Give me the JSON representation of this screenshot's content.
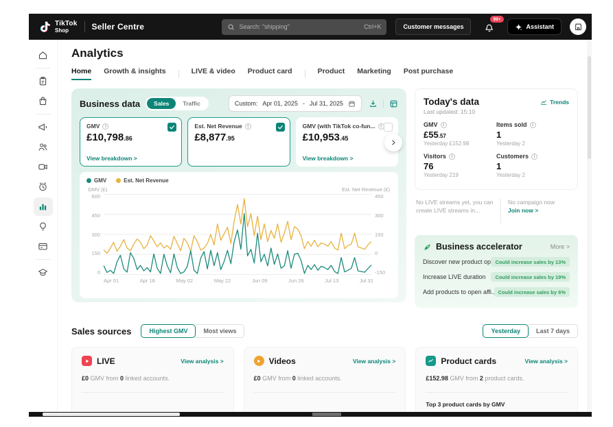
{
  "header": {
    "logo": {
      "line1": "TikTok",
      "line2": "Shop"
    },
    "product_name": "Seller Centre",
    "search": {
      "placeholder": "Search: \"shipping\"",
      "shortcut": "Ctrl+K"
    },
    "customer_messages_label": "Customer messages",
    "notification_badge": "99+",
    "assistant_label": "Assistant"
  },
  "sidebar": {
    "active": "analytics",
    "icons": [
      "home",
      "orders",
      "products",
      "marketing",
      "affiliate",
      "live",
      "ads",
      "analytics",
      "growth",
      "finance",
      "academy"
    ]
  },
  "page": {
    "title": "Analytics",
    "tabs": [
      {
        "label": "Home",
        "active": true
      },
      {
        "label": "Growth & insights",
        "active": false
      },
      {
        "label": "LIVE & video",
        "active": false
      },
      {
        "label": "Product card",
        "active": false
      },
      {
        "label": "Product",
        "active": false
      },
      {
        "label": "Marketing",
        "active": false
      },
      {
        "label": "Post purchase",
        "active": false
      }
    ]
  },
  "business_data": {
    "title": "Business data",
    "toggle": {
      "sales": "Sales",
      "traffic": "Traffic"
    },
    "date_range": {
      "label": "Custom:",
      "start": "Apr 01, 2025",
      "separator": "-",
      "end": "Jul 31, 2025"
    },
    "metric_cards": [
      {
        "label": "GMV",
        "value": "£10,798",
        "decimals": ".86",
        "checked": true,
        "link": "View breakdown >"
      },
      {
        "label": "Est. Net Revenue",
        "value": "£8,877",
        "decimals": ".95",
        "checked": true,
        "link": ""
      },
      {
        "label": "GMV (with TikTok co-fun...",
        "value": "£10,953",
        "decimals": ".45",
        "checked": false,
        "link": "View breakdown >"
      }
    ]
  },
  "chart_data": {
    "type": "line",
    "grid": true,
    "legend_position": "top-left",
    "x_ticks": [
      "Apr 01",
      "Apr 18",
      "May 02",
      "May 22",
      "Jun 09",
      "Jun 26",
      "Jul 13",
      "Jul 31"
    ],
    "left_axis": {
      "label": "GMV (£)",
      "ticks": [
        "600",
        "450",
        "300",
        "150",
        "0"
      ],
      "range": [
        0,
        600
      ]
    },
    "right_axis": {
      "label": "Est. Net Revenue (£)",
      "ticks": [
        "450",
        "300",
        "150",
        "0",
        "-150"
      ],
      "range": [
        -150,
        450
      ]
    },
    "series": [
      {
        "name": "GMV",
        "axis": "left",
        "color": "#1b8a7d",
        "values": [
          60,
          8,
          25,
          0,
          90,
          140,
          35,
          10,
          160,
          115,
          30,
          62,
          20,
          45,
          12,
          150,
          40,
          0,
          148,
          60,
          5,
          150,
          45,
          0,
          12,
          55,
          175,
          25,
          0,
          118,
          168,
          35,
          178,
          60,
          160,
          30,
          92,
          178,
          75,
          245,
          335,
          185,
          460,
          135,
          185,
          80,
          310,
          90,
          148,
          58,
          195,
          70,
          150,
          40,
          60,
          175,
          40,
          148,
          155,
          100,
          0,
          62,
          30,
          68,
          25,
          55,
          45,
          30,
          62,
          15,
          0,
          122,
          12,
          25,
          40,
          122,
          20,
          15,
          10,
          38,
          65
        ]
      },
      {
        "name": "Est. Net Revenue",
        "axis": "right",
        "color": "#e7b23c",
        "values": [
          30,
          5,
          45,
          90,
          20,
          60,
          110,
          45,
          25,
          75,
          115,
          90,
          40,
          70,
          140,
          100,
          55,
          85,
          45,
          65,
          35,
          135,
          80,
          25,
          120,
          85,
          20,
          140,
          95,
          30,
          45,
          80,
          150,
          70,
          230,
          105,
          155,
          205,
          80,
          250,
          380,
          230,
          425,
          210,
          310,
          140,
          290,
          110,
          230,
          95,
          180,
          120,
          230,
          90,
          160,
          250,
          110,
          210,
          190,
          140,
          40,
          95,
          60,
          105,
          55,
          85,
          75,
          60,
          95,
          45,
          30,
          160,
          40,
          65,
          75,
          160,
          55,
          45,
          35,
          70,
          95
        ]
      }
    ]
  },
  "today": {
    "title": "Today's data",
    "last_updated": "Last updated: 15:10",
    "trends_label": "Trends",
    "metrics": [
      {
        "label": "GMV",
        "value": "£55",
        "decimals": ".57",
        "yesterday": "Yesterday £152.98"
      },
      {
        "label": "Items sold",
        "value": "1",
        "decimals": "",
        "yesterday": "Yesterday 2"
      },
      {
        "label": "Visitors",
        "value": "76",
        "decimals": "",
        "yesterday": "Yesterday 219"
      },
      {
        "label": "Customers",
        "value": "1",
        "decimals": "",
        "yesterday": "Yesterday 2"
      }
    ],
    "notices": [
      {
        "text": "No LIVE streams yet, you can create LIVE streams in...",
        "link": ""
      },
      {
        "text": "No campaign now",
        "link": "Join now >"
      }
    ]
  },
  "accelerator": {
    "title": "Business accelerator",
    "more_label": "More >",
    "items": [
      {
        "label": "Discover new product op...",
        "badge": "Could increase sales by 13%"
      },
      {
        "label": "Increase LIVE duration",
        "badge": "Could increase sales by 19%"
      },
      {
        "label": "Add products to open affi...",
        "badge": "Could increase sales by 6%"
      }
    ]
  },
  "sales_sources": {
    "title": "Sales sources",
    "rank_toggle": [
      {
        "label": "Highest GMV",
        "active": true
      },
      {
        "label": "Most views",
        "active": false
      }
    ],
    "period_toggle": [
      {
        "label": "Yesterday",
        "active": true
      },
      {
        "label": "Last 7 days",
        "active": false
      }
    ],
    "cards": [
      {
        "title": "LIVE",
        "link": "View analysis >",
        "stat_value": "£0",
        "stat_mid": " GMV from ",
        "stat_value2": "0",
        "stat_tail": " linked accounts.",
        "extra": ""
      },
      {
        "title": "Videos",
        "link": "View analysis >",
        "stat_value": "£0",
        "stat_mid": " GMV from ",
        "stat_value2": "0",
        "stat_tail": " linked accounts.",
        "extra": ""
      },
      {
        "title": "Product cards",
        "link": "View analysis >",
        "stat_value": "£152.98",
        "stat_mid": " GMV from ",
        "stat_value2": "2",
        "stat_tail": " product cards.",
        "extra": "Top 3 product cards by GMV"
      }
    ]
  },
  "colors": {
    "accent": "#0c8577",
    "chart_gmv": "#1b8a7d",
    "chart_revenue": "#e7b23c",
    "accel_green": "#2f9e5f",
    "live_red": "#ef4352",
    "video_orange": "#efa32f",
    "badge_red": "#e8465a"
  }
}
